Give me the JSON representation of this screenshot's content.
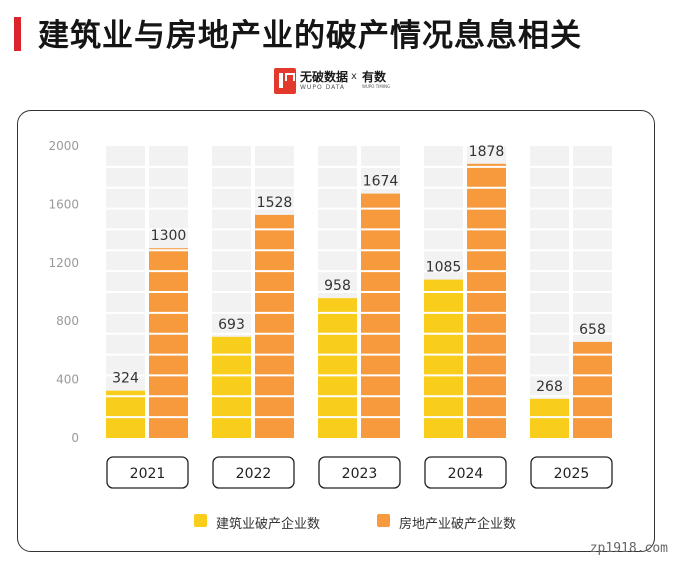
{
  "header": {
    "title": "建筑业与房地产业的破产情况息息相关"
  },
  "logo": {
    "name_cn": "无破数据",
    "name_en": "WUPO DATA",
    "separator": "x",
    "partner": "有数",
    "partner_en": "WUPO TIMING"
  },
  "colors": {
    "construction": "#f8cd1c",
    "real_estate": "#f79a3e",
    "track": "#f2f2f2",
    "accent": "#d9252b"
  },
  "chart_data": {
    "type": "bar",
    "categories": [
      "2021",
      "2022",
      "2023",
      "2024",
      "2025"
    ],
    "series": [
      {
        "name": "建筑业破产企业数",
        "values": [
          324,
          693,
          958,
          1085,
          268
        ]
      },
      {
        "name": "房地产业破产企业数",
        "values": [
          1300,
          1528,
          1674,
          1878,
          658
        ]
      }
    ],
    "y_ticks": [
      "0",
      "400",
      "800",
      "1200",
      "1600",
      "2000"
    ],
    "ylim": [
      0,
      2000
    ],
    "grid": false,
    "legend": "bottom"
  },
  "watermark": "zp1918.com"
}
